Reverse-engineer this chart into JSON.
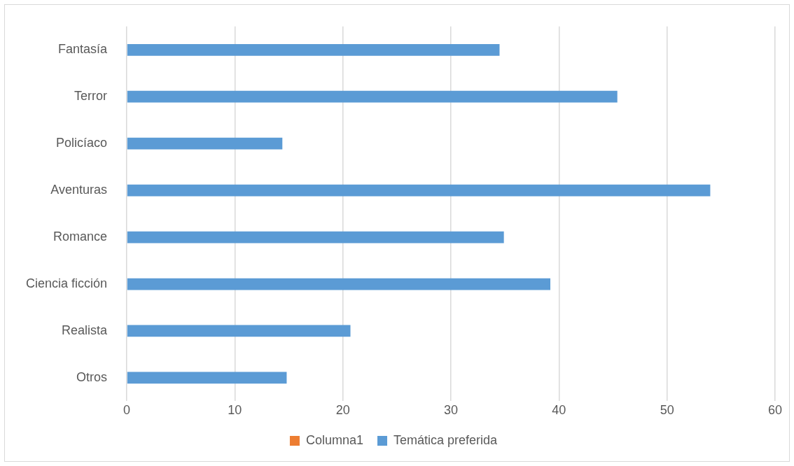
{
  "chart_data": {
    "type": "bar",
    "orientation": "horizontal",
    "categories": [
      "Fantasía",
      "Terror",
      "Policíaco",
      "Aventuras",
      "Romance",
      "Ciencia ficción",
      "Realista",
      "Otros"
    ],
    "series": [
      {
        "name": "Columna1",
        "color": "#ed7d31",
        "values": [
          null,
          null,
          null,
          null,
          null,
          null,
          null,
          null
        ]
      },
      {
        "name": "Temática preferida",
        "color": "#5b9bd5",
        "values": [
          34.5,
          45.4,
          14.4,
          54.0,
          34.9,
          39.2,
          20.7,
          14.8
        ]
      }
    ],
    "xlim": [
      0,
      60
    ],
    "xticks": [
      0,
      10,
      20,
      30,
      40,
      50,
      60
    ],
    "grid": "x",
    "legend": "bottom"
  }
}
